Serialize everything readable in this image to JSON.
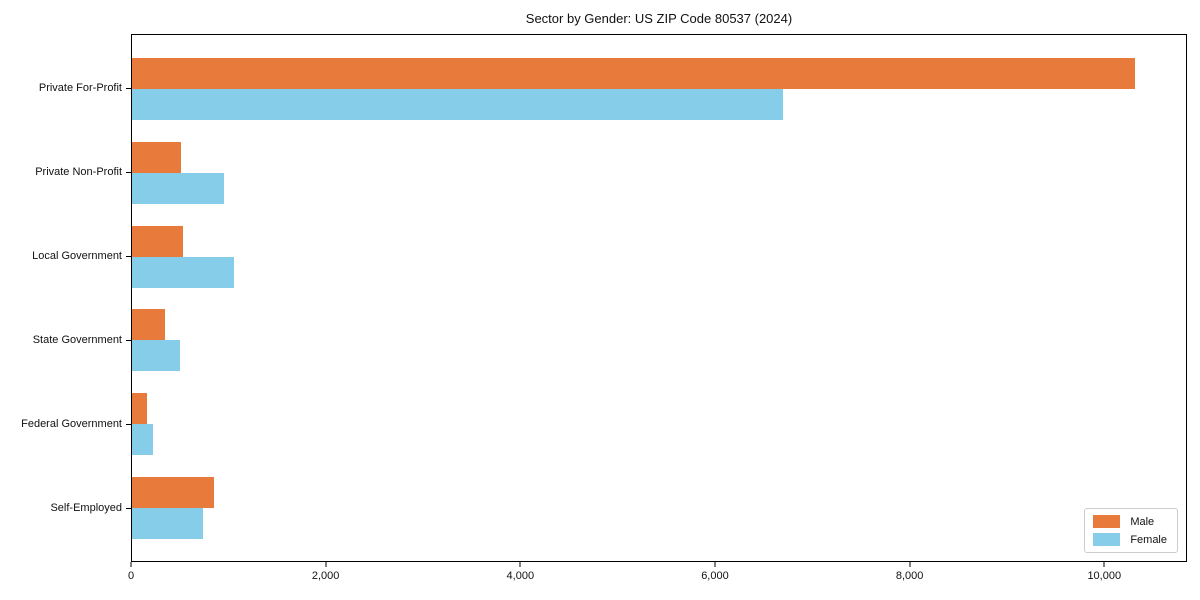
{
  "chart_data": {
    "type": "bar",
    "orientation": "horizontal",
    "title": "Sector by Gender: US ZIP Code 80537 (2024)",
    "categories": [
      "Private For-Profit",
      "Private Non-Profit",
      "Local Government",
      "State Government",
      "Federal Government",
      "Self-Employed"
    ],
    "series": [
      {
        "name": "Male",
        "color": "#e87a3c",
        "values": [
          10320,
          500,
          520,
          340,
          150,
          840
        ]
      },
      {
        "name": "Female",
        "color": "#85cde8",
        "values": [
          6700,
          950,
          1050,
          490,
          220,
          730
        ]
      }
    ],
    "xlabel": "",
    "ylabel": "",
    "xlim": [
      0,
      10850
    ],
    "x_ticks": [
      {
        "value": 0,
        "label": "0"
      },
      {
        "value": 2000,
        "label": "2,000"
      },
      {
        "value": 4000,
        "label": "4,000"
      },
      {
        "value": 6000,
        "label": "6,000"
      },
      {
        "value": 8000,
        "label": "8,000"
      },
      {
        "value": 10000,
        "label": "10,000"
      }
    ],
    "grid": false,
    "legend_position": "lower right"
  }
}
